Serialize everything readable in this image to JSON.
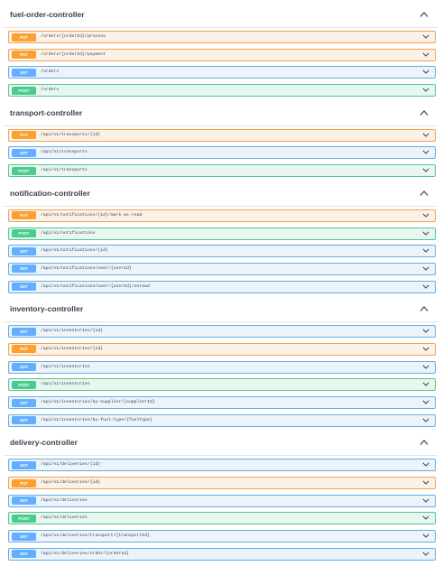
{
  "sections": [
    {
      "name": "fuel-order-controller",
      "operations": [
        {
          "method": "PUT",
          "path": "/orders/{orderId}/process"
        },
        {
          "method": "PUT",
          "path": "/orders/{orderId}/payment"
        },
        {
          "method": "GET",
          "path": "/orders"
        },
        {
          "method": "POST",
          "path": "/orders"
        }
      ]
    },
    {
      "name": "transport-controller",
      "operations": [
        {
          "method": "PUT",
          "path": "/api/v1/transports/{id}"
        },
        {
          "method": "GET",
          "path": "/api/v1/transports"
        },
        {
          "method": "POST",
          "path": "/api/v1/transports"
        }
      ]
    },
    {
      "name": "notification-controller",
      "operations": [
        {
          "method": "PUT",
          "path": "/api/v1/notifications/{id}/mark-as-read"
        },
        {
          "method": "POST",
          "path": "/api/v1/notifications"
        },
        {
          "method": "GET",
          "path": "/api/v1/notifications/{id}"
        },
        {
          "method": "GET",
          "path": "/api/v1/notifications/user/{userId}"
        },
        {
          "method": "GET",
          "path": "/api/v1/notifications/user/{userId}/unread"
        }
      ]
    },
    {
      "name": "inventory-controller",
      "operations": [
        {
          "method": "GET",
          "path": "/api/v1/inventories/{id}"
        },
        {
          "method": "PUT",
          "path": "/api/v1/inventories/{id}"
        },
        {
          "method": "GET",
          "path": "/api/v1/inventories"
        },
        {
          "method": "POST",
          "path": "/api/v1/inventories"
        },
        {
          "method": "GET",
          "path": "/api/v1/inventories/by-supplier/{supplierId}"
        },
        {
          "method": "GET",
          "path": "/api/v1/inventories/by-fuel-type/{fuelType}"
        }
      ]
    },
    {
      "name": "delivery-controller",
      "operations": [
        {
          "method": "GET",
          "path": "/api/v1/deliveries/{id}"
        },
        {
          "method": "PUT",
          "path": "/api/v1/deliveries/{id}"
        },
        {
          "method": "GET",
          "path": "/api/v1/deliveries"
        },
        {
          "method": "POST",
          "path": "/api/v1/deliveries"
        },
        {
          "method": "GET",
          "path": "/api/v1/deliveries/transport/{transportId}"
        },
        {
          "method": "GET",
          "path": "/api/v1/deliveries/order/{orderId}"
        }
      ]
    }
  ],
  "icons": {
    "section_toggle": "chevron-up-icon",
    "operation_toggle": "chevron-down-icon"
  },
  "colors": {
    "PUT": "#fca130",
    "GET": "#61affe",
    "POST": "#49cc90"
  }
}
